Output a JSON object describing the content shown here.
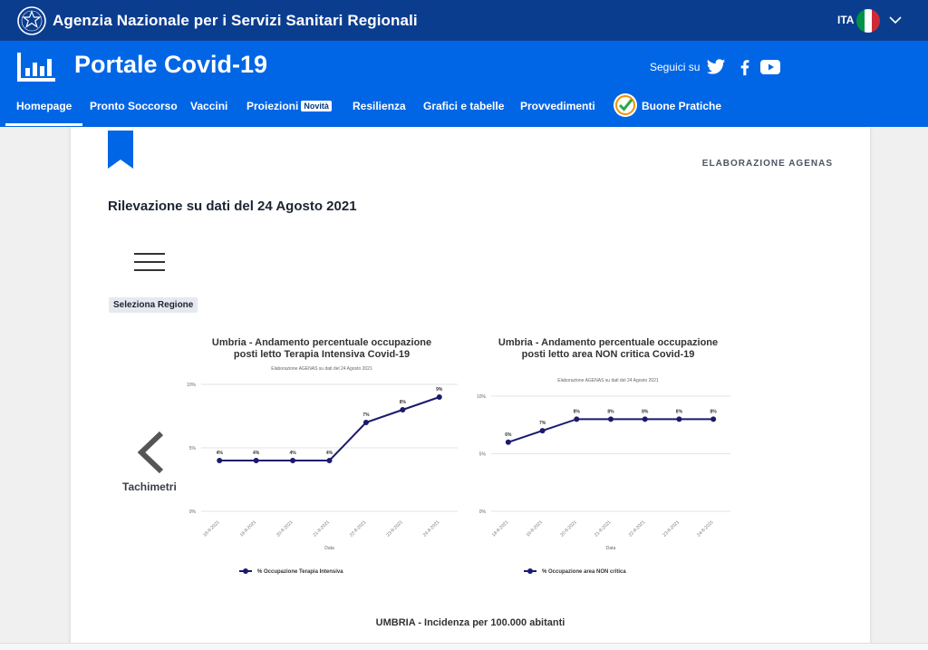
{
  "topbar": {
    "agency_name": "Agenzia Nazionale per i Servizi Sanitari Regionali",
    "language": "ITA"
  },
  "header": {
    "portal_title": "Portale Covid-19",
    "follow_label": "Seguici su",
    "social_icons": [
      "twitter-icon",
      "facebook-icon",
      "youtube-icon"
    ]
  },
  "nav": {
    "items": [
      {
        "label": "Homepage",
        "active": true
      },
      {
        "label": "Pronto Soccorso"
      },
      {
        "label": "Vaccini"
      },
      {
        "label": "Proiezioni",
        "badge": "Novità"
      },
      {
        "label": "Resilienza"
      },
      {
        "label": "Grafici e tabelle"
      },
      {
        "label": "Provvedimenti"
      },
      {
        "label": "Buone Pratiche"
      }
    ]
  },
  "content": {
    "elaboration": "ELABORAZIONE AGENAS",
    "survey_label": "Rilevazione su dati del 24 Agosto 2021",
    "select_region": "Seleziona Regione",
    "prev_label": "Tachimetri",
    "bottom_title": "UMBRIA - Incidenza per 100.000 abitanti"
  },
  "colors": {
    "agency_bar": "#0b3d8f",
    "portal_blue": "#0066e6",
    "series": "#1a1a6e"
  },
  "chart_data": [
    {
      "type": "line",
      "title": "Umbria - Andamento percentuale occupazione posti letto Terapia Intensiva Covid-19",
      "subtitle": "Elaborazione AGENAS su dati del 24 Agosto 2021",
      "x": [
        "18-8-2021",
        "19-8-2021",
        "20-8-2021",
        "21-8-2021",
        "22-8-2021",
        "23-8-2021",
        "24-8-2021"
      ],
      "series": [
        {
          "name": "% Occupazione Terapia Intensiva",
          "values": [
            4,
            4,
            4,
            4,
            7,
            8,
            9
          ]
        }
      ],
      "data_labels": [
        "4%",
        "4%",
        "4%",
        "4%",
        "7%",
        "8%",
        "9%"
      ],
      "xlabel": "Data",
      "ylabel": "",
      "yticks": [
        "0%",
        "5%",
        "10%"
      ],
      "ylim": [
        0,
        10
      ],
      "grid": true,
      "legend": "bottom"
    },
    {
      "type": "line",
      "title": "Umbria - Andamento percentuale occupazione posti letto area NON critica Covid-19",
      "subtitle": "Elaborazione AGENAS su dati del 24 Agosto 2021",
      "x": [
        "18-8-2021",
        "19-8-2021",
        "20-8-2021",
        "21-8-2021",
        "22-8-2021",
        "23-8-2021",
        "24-8-2021"
      ],
      "series": [
        {
          "name": "% Occupazione area NON critica",
          "values": [
            6,
            7,
            8,
            8,
            8,
            8,
            8
          ]
        }
      ],
      "data_labels": [
        "6%",
        "7%",
        "8%",
        "8%",
        "8%",
        "8%",
        "8%"
      ],
      "xlabel": "Data",
      "ylabel": "",
      "yticks": [
        "0%",
        "5%",
        "10%"
      ],
      "ylim": [
        0,
        10
      ],
      "grid": true,
      "legend": "bottom"
    }
  ]
}
